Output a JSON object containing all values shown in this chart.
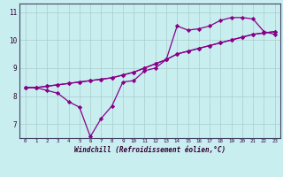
{
  "xlabel": "Windchill (Refroidissement éolien,°C)",
  "bg_color": "#c8eef0",
  "line_color": "#880088",
  "ylim": [
    6.5,
    11.3
  ],
  "xlim": [
    -0.5,
    23.5
  ],
  "yticks": [
    7,
    8,
    9,
    10,
    11
  ],
  "xticks": [
    0,
    1,
    2,
    3,
    4,
    5,
    6,
    7,
    8,
    9,
    10,
    11,
    12,
    13,
    14,
    15,
    16,
    17,
    18,
    19,
    20,
    21,
    22,
    23
  ],
  "line1_x": [
    0,
    1,
    2,
    3,
    4,
    5,
    6,
    7,
    8,
    9,
    10,
    11,
    12,
    13,
    14,
    15,
    16,
    17,
    18,
    19,
    20,
    21,
    22,
    23
  ],
  "line1_y": [
    8.3,
    8.3,
    8.2,
    8.1,
    7.8,
    7.6,
    6.55,
    7.2,
    7.65,
    8.5,
    8.55,
    8.9,
    9.0,
    9.3,
    10.5,
    10.35,
    10.4,
    10.5,
    10.7,
    10.8,
    10.8,
    10.75,
    10.3,
    10.2
  ],
  "line2_x": [
    0,
    1,
    2,
    3,
    4,
    5,
    6,
    7,
    8,
    9,
    10,
    11,
    12,
    13,
    14,
    15,
    16,
    17,
    18,
    19,
    20,
    21,
    22,
    23
  ],
  "line2_y": [
    8.3,
    8.3,
    8.35,
    8.4,
    8.45,
    8.5,
    8.55,
    8.6,
    8.65,
    8.75,
    8.85,
    9.0,
    9.15,
    9.3,
    9.5,
    9.6,
    9.7,
    9.8,
    9.9,
    10.0,
    10.1,
    10.2,
    10.25,
    10.3
  ],
  "line3_x": [
    0,
    1,
    2,
    3,
    4,
    5,
    6,
    7,
    8,
    9,
    10,
    11,
    12,
    13,
    14,
    15,
    16,
    17,
    18,
    19,
    20,
    21,
    22,
    23
  ],
  "line3_y": [
    8.3,
    8.3,
    8.35,
    8.4,
    8.45,
    8.5,
    8.55,
    8.6,
    8.65,
    8.75,
    8.85,
    9.0,
    9.15,
    9.3,
    9.5,
    9.6,
    9.7,
    9.8,
    9.9,
    10.0,
    10.1,
    10.2,
    10.25,
    10.3
  ]
}
